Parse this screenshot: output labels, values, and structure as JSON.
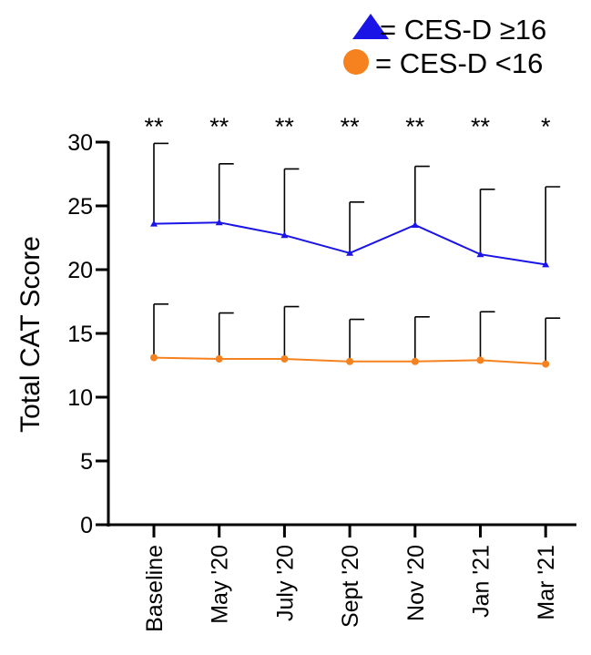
{
  "chart_data": {
    "type": "line",
    "title": "",
    "xlabel": "",
    "ylabel": "Total CAT Score",
    "ylim": [
      0,
      30
    ],
    "yticks": [
      0,
      5,
      10,
      15,
      20,
      25,
      30
    ],
    "ytick_labels": [
      "0",
      "5",
      "10",
      "15",
      "20",
      "25",
      "30"
    ],
    "categories": [
      "Baseline",
      "May '20",
      "July '20",
      "Sept '20",
      "Nov '20",
      "Jan '21",
      "Mar '21"
    ],
    "significance": [
      "**",
      "**",
      "**",
      "**",
      "**",
      "**",
      "*"
    ],
    "grid": false,
    "legend_position": "top-right",
    "series": [
      {
        "name": "= CES-D ≥16",
        "marker": "triangle",
        "color": "#1a14e6",
        "values": [
          23.6,
          23.7,
          22.7,
          21.3,
          23.5,
          21.2,
          20.4
        ],
        "error_upper": [
          29.9,
          28.3,
          27.9,
          25.3,
          28.1,
          26.3,
          26.5
        ]
      },
      {
        "name": "= CES-D <16",
        "marker": "circle",
        "color": "#f5821f",
        "values": [
          13.1,
          13.0,
          13.0,
          12.8,
          12.8,
          12.9,
          12.6
        ],
        "error_upper": [
          17.3,
          16.6,
          17.1,
          16.1,
          16.3,
          16.7,
          16.2
        ]
      }
    ]
  }
}
